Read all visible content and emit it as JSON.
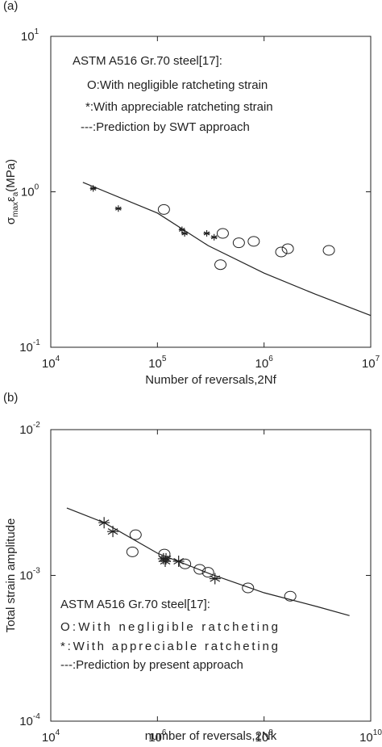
{
  "chart_data": [
    {
      "type": "scatter",
      "panel": "(a)",
      "log_x": true,
      "log_y": true,
      "x_label": "Number of reversals,2Nf",
      "y_label_parts": [
        "σ",
        "max",
        "ε",
        "a",
        "(MPa)"
      ],
      "annotations": [
        "ASTM A516 Gr.70 steel[17]:",
        "O:With negligible ratcheting strain",
        "*:With appreciable ratcheting strain",
        "---:Prediction by SWT approach"
      ],
      "xlim": [
        10000,
        10000000
      ],
      "ylim": [
        0.1,
        10
      ],
      "xticks": [
        {
          "value": 10000,
          "label": "10",
          "exponent": "4"
        },
        {
          "value": 100000,
          "label": "10",
          "exponent": "5"
        },
        {
          "value": 1000000,
          "label": "10",
          "exponent": "6"
        },
        {
          "value": 10000000,
          "label": "10",
          "exponent": "7"
        }
      ],
      "yticks": [
        {
          "value": 0.1,
          "label": "10",
          "exponent": "-1"
        },
        {
          "value": 1,
          "label": "10",
          "exponent": "0"
        },
        {
          "value": 10,
          "label": "10",
          "exponent": "1"
        }
      ],
      "series": [
        {
          "marker": "star",
          "color": "#222",
          "x": [
            25000,
            43000,
            170000,
            180000,
            290000,
            340000
          ],
          "values": [
            1.05,
            0.78,
            0.57,
            0.54,
            0.54,
            0.51
          ]
        },
        {
          "marker": "circle",
          "color": "#222",
          "x": [
            115000,
            410000,
            390000,
            580000,
            800000,
            1450000,
            1670000,
            4050000
          ],
          "values": [
            0.77,
            0.54,
            0.34,
            0.47,
            0.48,
            0.41,
            0.43,
            0.42
          ]
        },
        {
          "marker": "line",
          "color": "#222",
          "x": [
            20000,
            100000,
            300000,
            1000000,
            3000000,
            10000000
          ],
          "values": [
            1.15,
            0.73,
            0.45,
            0.3,
            0.22,
            0.16
          ]
        }
      ]
    },
    {
      "type": "scatter",
      "panel": "(b)",
      "log_x": true,
      "log_y": true,
      "x_label": "number of reversals,2Nk",
      "y_label_parts": [
        "Total strain amplitude"
      ],
      "annotations": [
        "ASTM A516 Gr.70 steel[17]:",
        "O:With     negligible     ratcheting",
        "*:With     appreciable     ratcheting",
        "---:Prediction by present approach"
      ],
      "xlim": [
        10000,
        10000000000
      ],
      "ylim": [
        0.0001,
        0.01
      ],
      "xticks": [
        {
          "value": 10000,
          "label": "10",
          "exponent": "4"
        },
        {
          "value": 1000000,
          "label": "10",
          "exponent": "6"
        },
        {
          "value": 100000000,
          "label": "10",
          "exponent": "8"
        },
        {
          "value": 10000000000,
          "label": "10",
          "exponent": "10"
        }
      ],
      "yticks": [
        {
          "value": 0.0001,
          "label": "10",
          "exponent": "-4"
        },
        {
          "value": 0.001,
          "label": "10",
          "exponent": "-3"
        },
        {
          "value": 0.01,
          "label": "10",
          "exponent": "-2"
        }
      ],
      "series": [
        {
          "marker": "star",
          "color": "#222",
          "x": [
            100000,
            146000,
            1300000,
            1400000,
            1450000,
            2500000,
            12000000
          ],
          "values": [
            0.0023,
            0.002,
            0.0013,
            0.00125,
            0.0013,
            0.00125,
            0.00095
          ]
        },
        {
          "marker": "circle",
          "color": "#222",
          "x": [
            390000,
            340000,
            1350000,
            3300000,
            6200000,
            8900000,
            50000000,
            310000000
          ],
          "values": [
            0.0019,
            0.00145,
            0.0014,
            0.0012,
            0.0011,
            0.00105,
            0.00082,
            0.00072
          ]
        },
        {
          "marker": "line",
          "color": "#222",
          "x": [
            20000,
            100000,
            1000000,
            10000000,
            100000000,
            1000000000,
            4000000000
          ],
          "values": [
            0.0029,
            0.0023,
            0.00142,
            0.00102,
            0.00076,
            0.00061,
            0.00053
          ]
        }
      ]
    }
  ]
}
